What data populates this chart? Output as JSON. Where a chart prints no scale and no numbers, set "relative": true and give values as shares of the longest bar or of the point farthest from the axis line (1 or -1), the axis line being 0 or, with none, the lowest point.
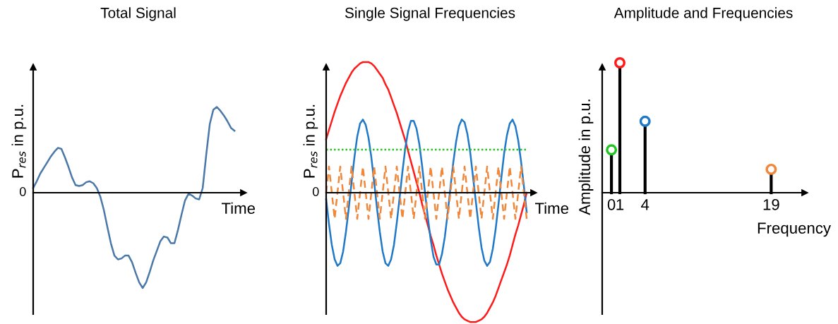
{
  "chart_data": [
    {
      "type": "line",
      "title": "Total Signal",
      "xlabel": "Time",
      "ylabel": "P$_{res}$ in p.u.",
      "relative": true,
      "tick_labels": false,
      "categories": [
        null,
        null,
        null,
        null,
        null,
        null,
        null,
        null,
        null,
        null,
        null,
        null,
        null,
        null,
        null,
        null,
        null,
        null,
        null,
        null,
        null,
        null,
        null,
        null,
        null,
        null,
        null,
        null,
        null,
        null,
        null,
        null,
        null,
        null,
        null,
        null,
        null,
        null,
        null,
        null,
        null,
        null,
        null,
        null,
        null,
        null,
        null,
        null,
        null,
        null,
        null,
        null,
        null,
        null,
        null,
        null,
        null,
        null
      ],
      "series": [
        {
          "color": "#4a78a8",
          "values": [
            0.05,
            0.12,
            0.2,
            0.26,
            0.32,
            0.38,
            0.43,
            0.47,
            0.46,
            0.37,
            0.27,
            0.16,
            0.08,
            0.07,
            0.08,
            0.11,
            0.12,
            0.1,
            0.05,
            -0.04,
            -0.18,
            -0.36,
            -0.53,
            -0.66,
            -0.7,
            -0.69,
            -0.66,
            -0.66,
            -0.73,
            -0.84,
            -0.94,
            -1.0,
            -0.94,
            -0.83,
            -0.71,
            -0.61,
            -0.51,
            -0.46,
            -0.47,
            -0.53,
            -0.53,
            -0.39,
            -0.23,
            -0.08,
            -0.01,
            -0.03,
            -0.06,
            -0.07,
            0.05,
            0.4,
            0.72,
            0.87,
            0.9,
            0.86,
            0.81,
            0.75,
            0.68,
            0.65
          ]
        }
      ],
      "annotations": [
        "0"
      ]
    },
    {
      "type": "line",
      "title": "Single Signal Frequencies",
      "xlabel": "Time",
      "ylabel": "P$_{res}$ in p.u.",
      "relative": true,
      "tick_labels": false,
      "categories": [
        null,
        null,
        null,
        null,
        null,
        null,
        null,
        null,
        null,
        null,
        null,
        null,
        null,
        null,
        null,
        null,
        null,
        null,
        null,
        null,
        null,
        null,
        null,
        null,
        null,
        null,
        null,
        null,
        null,
        null,
        null,
        null,
        null,
        null,
        null,
        null,
        null,
        null,
        null,
        null,
        null,
        null,
        null,
        null,
        null,
        null,
        null,
        null,
        null,
        null,
        null,
        null,
        null,
        null,
        null,
        null,
        null,
        null,
        null,
        null,
        null,
        null,
        null,
        null,
        null,
        null,
        null,
        null,
        null,
        null,
        null,
        null
      ],
      "series": [
        {
          "color": "#ff1a1a",
          "line_style": "solid",
          "values": [
            0.41,
            0.48,
            0.55,
            0.62,
            0.68,
            0.74,
            0.79,
            0.84,
            0.88,
            0.92,
            0.95,
            0.97,
            0.99,
            1.0,
            1.0,
            1.0,
            0.99,
            0.97,
            0.94,
            0.91,
            0.88,
            0.83,
            0.79,
            0.73,
            0.67,
            0.61,
            0.54,
            0.47,
            0.4,
            0.32,
            0.24,
            0.16,
            0.08,
            0.0,
            -0.09,
            -0.17,
            -0.25,
            -0.33,
            -0.4,
            -0.48,
            -0.55,
            -0.62,
            -0.68,
            -0.74,
            -0.79,
            -0.84,
            -0.88,
            -0.92,
            -0.95,
            -0.97,
            -0.98,
            -0.99,
            -0.99,
            -0.99,
            -0.98,
            -0.97,
            -0.95,
            -0.92,
            -0.88,
            -0.84,
            -0.79,
            -0.73,
            -0.67,
            -0.61,
            -0.55,
            -0.48,
            -0.4,
            -0.32,
            -0.25,
            -0.17,
            -0.09,
            0.0
          ]
        },
        {
          "color": "#1f78c8",
          "line_style": "solid",
          "values": [
            -0.05,
            -0.24,
            -0.4,
            -0.51,
            -0.56,
            -0.54,
            -0.45,
            -0.3,
            -0.12,
            0.08,
            0.27,
            0.43,
            0.53,
            0.56,
            0.52,
            0.42,
            0.27,
            0.08,
            -0.12,
            -0.3,
            -0.45,
            -0.54,
            -0.56,
            -0.51,
            -0.4,
            -0.23,
            -0.04,
            0.16,
            0.34,
            0.47,
            0.55,
            0.55,
            0.49,
            0.37,
            0.2,
            0.0,
            -0.19,
            -0.36,
            -0.49,
            -0.55,
            -0.55,
            -0.47,
            -0.34,
            -0.16,
            0.04,
            0.23,
            0.39,
            0.51,
            0.56,
            0.54,
            0.45,
            0.31,
            0.12,
            -0.07,
            -0.26,
            -0.42,
            -0.52,
            -0.56,
            -0.53,
            -0.43,
            -0.28,
            -0.09,
            0.11,
            0.3,
            0.44,
            0.53,
            0.56,
            0.51,
            0.4,
            0.24,
            0.05,
            -0.15
          ]
        },
        {
          "color": "#22c422",
          "line_style": "dotted",
          "values": [
            0.33,
            0.33,
            0.33,
            0.33,
            0.33,
            0.33,
            0.33,
            0.33,
            0.33,
            0.33,
            0.33,
            0.33,
            0.33,
            0.33,
            0.33,
            0.33,
            0.33,
            0.33,
            0.33,
            0.33,
            0.33,
            0.33,
            0.33,
            0.33,
            0.33,
            0.33,
            0.33,
            0.33,
            0.33,
            0.33,
            0.33,
            0.33,
            0.33,
            0.33,
            0.33,
            0.33,
            0.33,
            0.33,
            0.33,
            0.33,
            0.33,
            0.33,
            0.33,
            0.33,
            0.33,
            0.33,
            0.33,
            0.33,
            0.33,
            0.33,
            0.33,
            0.33,
            0.33,
            0.33,
            0.33,
            0.33,
            0.33,
            0.33,
            0.33,
            0.33,
            0.33,
            0.33,
            0.33,
            0.33,
            0.33,
            0.33,
            0.33,
            0.33,
            0.33,
            0.33,
            0.33,
            0.33
          ]
        },
        {
          "color": "#f0883c",
          "line_style": "dashed",
          "values": [
            0.0,
            0.2,
            0.0,
            -0.2,
            0.0,
            0.2,
            0.0,
            -0.2,
            0.0,
            0.2,
            0.0,
            -0.2,
            0.0,
            0.2,
            0.0,
            -0.2,
            0.0,
            0.2,
            0.0,
            -0.2,
            0.0,
            0.2,
            0.0,
            -0.2,
            0.0,
            0.2,
            0.0,
            -0.2,
            0.0,
            0.2,
            0.0,
            -0.2,
            0.0,
            0.2,
            0.0,
            -0.2,
            0.0,
            0.2,
            0.0,
            -0.2,
            0.0,
            0.2,
            0.0,
            -0.2,
            0.0,
            0.2,
            0.0,
            -0.2,
            0.0,
            0.2,
            0.0,
            -0.2,
            0.0,
            0.2,
            0.0,
            -0.2,
            0.0,
            0.2,
            0.0,
            -0.2,
            0.0,
            0.2,
            0.0,
            -0.2,
            0.0,
            0.2,
            0.0,
            -0.2,
            0.0,
            0.2,
            0.0,
            -0.2
          ]
        }
      ],
      "annotations": [
        "0"
      ]
    },
    {
      "type": "lollipop",
      "title": "Amplitude and Frequencies",
      "xlabel": "Frequency",
      "ylabel": "Amplitude in p.u.",
      "relative": true,
      "tick_labels": "x",
      "marker": "circle",
      "x": [
        0,
        1,
        4,
        19
      ],
      "values": [
        0.33,
        1.0,
        0.55,
        0.18
      ],
      "colors": [
        "#22c422",
        "#ff1a1a",
        "#1f78c8",
        "#f0883c"
      ],
      "xlim": [
        -1.1,
        23
      ],
      "xticks": [
        0,
        1,
        4,
        19
      ]
    }
  ]
}
